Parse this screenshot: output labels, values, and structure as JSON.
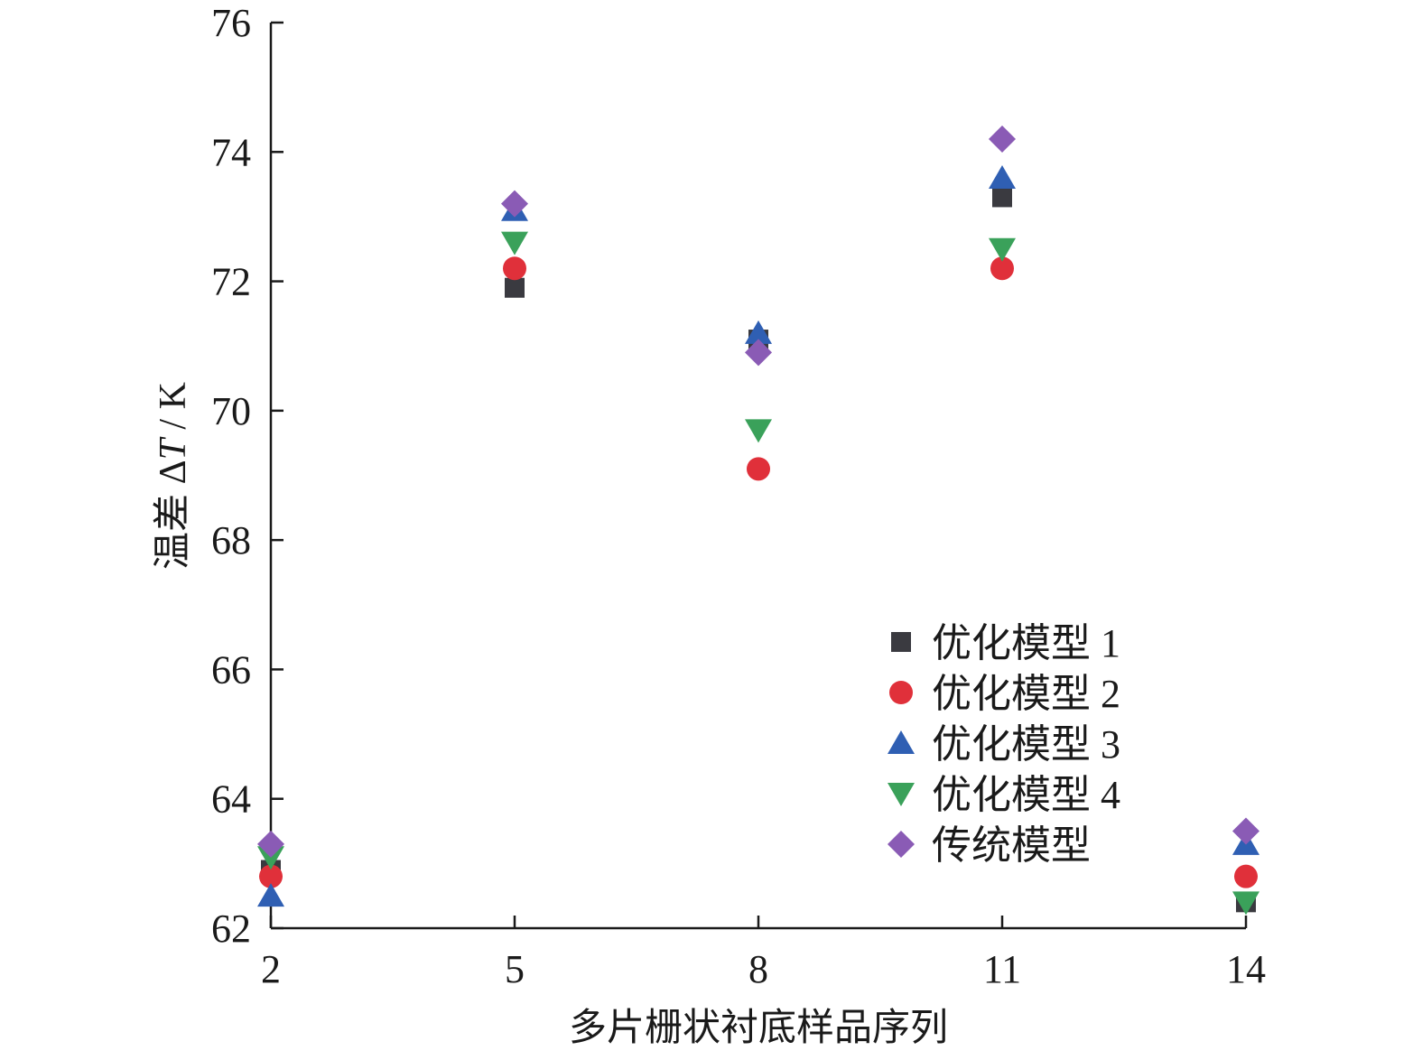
{
  "chart_data": {
    "type": "scatter",
    "title": "",
    "xlabel": "多片栅状衬底样品序列",
    "ylabel_prefix": "温差 Δ",
    "ylabel_var": "T",
    "ylabel_suffix": " / K",
    "x": [
      2,
      5,
      8,
      11,
      14
    ],
    "x_ticks": [
      "2",
      "5",
      "8",
      "11",
      "14"
    ],
    "y_ticks": [
      "62",
      "64",
      "66",
      "68",
      "70",
      "72",
      "74",
      "76"
    ],
    "xlim": [
      2,
      14
    ],
    "ylim": [
      62,
      76
    ],
    "grid": false,
    "legend_position": "lower-right",
    "series": [
      {
        "name": "优化模型 1",
        "marker": "square",
        "color": "#3a3a40",
        "values": [
          62.9,
          71.9,
          71.1,
          73.3,
          62.4
        ]
      },
      {
        "name": "优化模型 2",
        "marker": "circle",
        "color": "#e0303a",
        "values": [
          62.8,
          72.2,
          69.1,
          72.2,
          62.8
        ]
      },
      {
        "name": "优化模型 3",
        "marker": "triangle-up",
        "color": "#2f5fb3",
        "values": [
          62.5,
          73.1,
          71.2,
          73.6,
          63.3
        ]
      },
      {
        "name": "优化模型 4",
        "marker": "triangle-down",
        "color": "#3aa15a",
        "values": [
          63.1,
          72.6,
          69.7,
          72.5,
          62.4
        ]
      },
      {
        "name": "传统模型",
        "marker": "diamond",
        "color": "#8a5bb5",
        "values": [
          63.3,
          73.2,
          70.9,
          74.2,
          63.5
        ]
      }
    ]
  }
}
